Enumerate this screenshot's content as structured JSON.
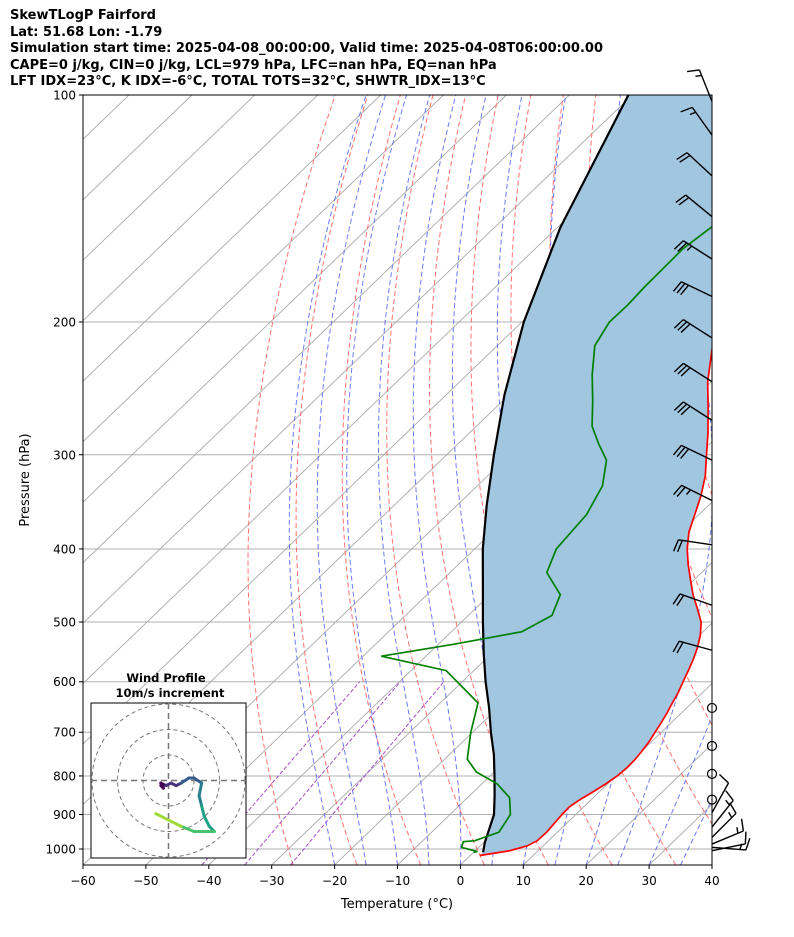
{
  "header": {
    "title": "SkewTLogP Fairford",
    "location": "Lat: 51.68   Lon: -1.79",
    "times": "Simulation start time: 2025-04-08_00:00:00, Valid time: 2025-04-08T06:00:00.00",
    "indices1": "CAPE=0 j/kg, CIN=0 j/kg, LCL=979 hPa, LFC=nan hPa, EQ=nan hPa",
    "indices2": "LFT IDX=23°C, K IDX=-6°C, TOTAL TOTS=32°C, SHWTR_IDX=13°C"
  },
  "chart_data": {
    "type": "line",
    "subtype": "skew-T log-P",
    "xlabel": "Temperature (°C)",
    "ylabel": "Pressure (hPa)",
    "xlim": [
      -60,
      40
    ],
    "ylim": [
      1050,
      100
    ],
    "yscale": "log",
    "grid": true,
    "x_ticks": [
      -60,
      -50,
      -40,
      -30,
      -20,
      -10,
      0,
      10,
      20,
      30,
      40
    ],
    "x_tick_labels": [
      "−60",
      "−50",
      "−40",
      "−30",
      "−20",
      "−10",
      "0",
      "10",
      "20",
      "30",
      "40"
    ],
    "y_ticks": [
      1000,
      900,
      800,
      700,
      600,
      500,
      400,
      300,
      200,
      100
    ],
    "y_tick_labels": [
      "1000",
      "900",
      "800",
      "700",
      "600",
      "500",
      "400",
      "300",
      "200",
      "100"
    ],
    "colors": {
      "temperature": "#ff0000",
      "dewpoint": "#008000",
      "parcel": "#000000",
      "fill": "#a1c6e0",
      "dry_adiabats": "#ff6060",
      "moist_adiabats": "#5e6cf0",
      "isotherms": "#aaaaaa",
      "mixing_ratio": "#a64ec8"
    },
    "series": [
      {
        "key": "temperature",
        "points": [
          [
            1.5,
            1020
          ],
          [
            5.5,
            1005
          ],
          [
            7.5,
            990
          ],
          [
            8.2,
            975
          ],
          [
            8.3,
            950
          ],
          [
            7.8,
            900
          ],
          [
            7.7,
            880
          ],
          [
            8.2,
            860
          ],
          [
            9.0,
            840
          ],
          [
            9.7,
            820
          ],
          [
            10.2,
            800
          ],
          [
            10.4,
            780
          ],
          [
            10.3,
            760
          ],
          [
            10.0,
            740
          ],
          [
            9.6,
            720
          ],
          [
            9.0,
            700
          ],
          [
            8.4,
            680
          ],
          [
            7.7,
            660
          ],
          [
            6.9,
            640
          ],
          [
            6.1,
            620
          ],
          [
            5.1,
            600
          ],
          [
            4.1,
            580
          ],
          [
            3.0,
            560
          ],
          [
            1.7,
            540
          ],
          [
            0.1,
            520
          ],
          [
            -1.9,
            500
          ],
          [
            -4.7,
            480
          ],
          [
            -7.7,
            460
          ],
          [
            -10.5,
            440
          ],
          [
            -13.4,
            420
          ],
          [
            -16.2,
            400
          ],
          [
            -18.7,
            380
          ],
          [
            -20.7,
            360
          ],
          [
            -22.8,
            340
          ],
          [
            -25.4,
            320
          ],
          [
            -28.7,
            300
          ],
          [
            -32.2,
            280
          ],
          [
            -36.2,
            260
          ],
          [
            -40.6,
            240
          ],
          [
            -44.7,
            220
          ],
          [
            -47.9,
            205
          ],
          [
            -47.3,
            200
          ],
          [
            -44.2,
            190
          ],
          [
            -40.6,
            180
          ],
          [
            -36.8,
            170
          ],
          [
            -32.9,
            160
          ],
          [
            -29.3,
            150
          ],
          [
            -25.5,
            140
          ],
          [
            -21.6,
            130
          ],
          [
            -17.4,
            120
          ],
          [
            -13.0,
            110
          ],
          [
            -8.3,
            100
          ]
        ]
      },
      {
        "key": "dewpoint",
        "points": [
          [
            0.0,
            1010
          ],
          [
            0.5,
            1008
          ],
          [
            -2.7,
            995
          ],
          [
            -3.4,
            978
          ],
          [
            -1.7,
            975
          ],
          [
            0.7,
            950
          ],
          [
            -0.4,
            900
          ],
          [
            -3.3,
            855
          ],
          [
            -7.5,
            820
          ],
          [
            -12.9,
            790
          ],
          [
            -16.4,
            760
          ],
          [
            -20.3,
            700
          ],
          [
            -24.0,
            640
          ],
          [
            -34.4,
            580
          ],
          [
            -47.1,
            555
          ],
          [
            -37.5,
            535
          ],
          [
            -28.8,
            515
          ],
          [
            -26.7,
            490
          ],
          [
            -28.8,
            460
          ],
          [
            -34.6,
            430
          ],
          [
            -37.0,
            400
          ],
          [
            -37.9,
            360
          ],
          [
            -40.1,
            330
          ],
          [
            -43.7,
            305
          ],
          [
            -47.7,
            290
          ],
          [
            -51.6,
            275
          ],
          [
            -55.6,
            255
          ],
          [
            -60.1,
            235
          ],
          [
            -64.5,
            215
          ],
          [
            -66.1,
            200
          ],
          [
            -66.0,
            190
          ],
          [
            -66.3,
            180
          ],
          [
            -66.4,
            170
          ],
          [
            -66.5,
            160
          ],
          [
            -65.6,
            150
          ],
          [
            -63.5,
            140
          ],
          [
            -60.3,
            130
          ],
          [
            -56.0,
            120
          ],
          [
            -52.2,
            110
          ],
          [
            -49.5,
            100
          ]
        ]
      },
      {
        "key": "parcel",
        "points": [
          [
            1.5,
            1010
          ],
          [
            0.1,
            979
          ],
          [
            -1.0,
            950
          ],
          [
            -3.0,
            900
          ],
          [
            -6.0,
            850
          ],
          [
            -9.3,
            800
          ],
          [
            -12.9,
            750
          ],
          [
            -17.1,
            700
          ],
          [
            -21.4,
            650
          ],
          [
            -26.3,
            600
          ],
          [
            -31.3,
            550
          ],
          [
            -36.6,
            500
          ],
          [
            -42.3,
            450
          ],
          [
            -48.7,
            400
          ],
          [
            -55.3,
            350
          ],
          [
            -62.5,
            300
          ],
          [
            -70.7,
            250
          ],
          [
            -79.7,
            200
          ],
          [
            -89.5,
            150
          ],
          [
            -100.6,
            100
          ]
        ]
      }
    ],
    "wind_barbs": [
      {
        "p": 1005,
        "u": 10,
        "v": 2
      },
      {
        "p": 995,
        "u": 13,
        "v": -1
      },
      {
        "p": 985,
        "u": 12,
        "v": 5
      },
      {
        "p": 965,
        "u": 10,
        "v": 10
      },
      {
        "p": 935,
        "u": 8,
        "v": 10
      },
      {
        "p": 895,
        "u": 5,
        "v": 9
      },
      {
        "p": 860,
        "u": 0,
        "v": 0
      },
      {
        "p": 795,
        "u": 0,
        "v": 0
      },
      {
        "p": 730,
        "u": 0,
        "v": 0
      },
      {
        "p": 650,
        "u": 0,
        "v": 0
      },
      {
        "p": 545,
        "u": -18,
        "v": 5
      },
      {
        "p": 475,
        "u": -17,
        "v": 6
      },
      {
        "p": 395,
        "u": -20,
        "v": 3
      },
      {
        "p": 345,
        "u": -24,
        "v": 12
      },
      {
        "p": 305,
        "u": -27,
        "v": 13
      },
      {
        "p": 270,
        "u": -25,
        "v": 16
      },
      {
        "p": 240,
        "u": -25,
        "v": 16
      },
      {
        "p": 210,
        "u": -25,
        "v": 16
      },
      {
        "p": 185,
        "u": -25,
        "v": 12
      },
      {
        "p": 165,
        "u": -22,
        "v": 14
      },
      {
        "p": 145,
        "u": -17,
        "v": 14
      },
      {
        "p": 128,
        "u": -14,
        "v": 13
      },
      {
        "p": 113,
        "u": -10,
        "v": 14
      },
      {
        "p": 102,
        "u": -6,
        "v": 15
      }
    ],
    "wind_profile_inset": {
      "title": "Wind Profile",
      "subtitle": "10m/s increment",
      "rings_m_s": [
        10,
        20,
        30
      ],
      "hodograph_colormap": "viridis",
      "hodograph_uv": [
        [
          -3,
          -2
        ],
        [
          -2,
          -3
        ],
        [
          -3,
          -1
        ],
        [
          -1,
          -2
        ],
        [
          1,
          -1
        ],
        [
          3,
          -2
        ],
        [
          5,
          -1
        ],
        [
          8,
          1
        ],
        [
          10,
          1
        ],
        [
          13,
          -1
        ],
        [
          12,
          -6
        ],
        [
          13,
          -10
        ],
        [
          14,
          -14
        ],
        [
          16,
          -18
        ],
        [
          18,
          -20
        ],
        [
          14,
          -20
        ],
        [
          10,
          -20
        ],
        [
          5,
          -18
        ],
        [
          1,
          -16
        ],
        [
          -3,
          -14
        ],
        [
          -5,
          -13
        ]
      ]
    }
  }
}
